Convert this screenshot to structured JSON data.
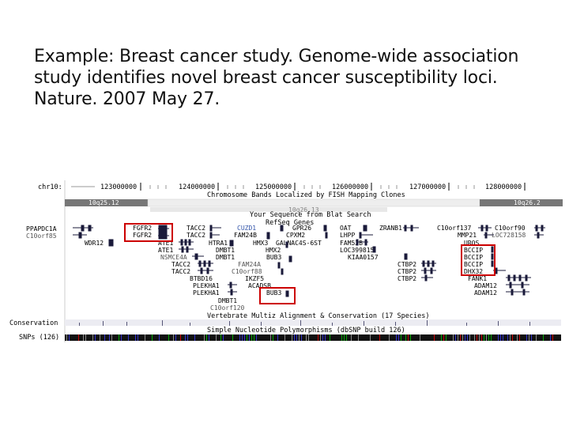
{
  "title_lines": [
    "Example: Breast cancer study. Genome-wide association",
    "study identifies novel breast cancer susceptibility loci.",
    "Nature. 2007 May 27."
  ],
  "browser": {
    "chrom_label": "chr10:",
    "positions": [
      "123000000",
      "124000000",
      "125000000",
      "126000000",
      "127000000",
      "128000000"
    ],
    "fish_track": "Chromosome Bands Localized by FISH Mapping Clones",
    "bands": [
      "10q25.12",
      "10q26.13",
      "10q26.2"
    ],
    "blat_track": "Your Sequence from Blat Search",
    "refseq_track": "RefSeq Genes",
    "left_labels": [
      "PPAPDC1A",
      "C10orf85"
    ],
    "genes": {
      "wdr": "WDR12",
      "fgfr2a": "FGFR2",
      "fgfr2b": "FGFR2",
      "ate1a": "ATE1",
      "ate1b": "ATE1",
      "nsmce4a": "NSMCE4A",
      "tacc2a": "TACC2",
      "tacc2b": "TACC2",
      "tacc2c": "TACC2",
      "tacc2d": "TACC2",
      "btbd16": "BTBD16",
      "plekha1a": "PLEKHA1",
      "plekha1b": "PLEKHA1",
      "htra1": "HTRA1",
      "dmbt1a": "DMBT1",
      "dmbt1b": "DMBT1",
      "dmbt1c": "DMBT1",
      "c10orf120": "C10orf120",
      "cuzd1": "CUZD1",
      "fam24b": "FAM24B",
      "fam24a": "FAM24A",
      "c10orf88": "C10orf88",
      "ikzf5": "IKZF5",
      "acadsb": "ACADSB",
      "hmx3": "HMX3",
      "hmx2": "HMX2",
      "bub3a": "BUB3",
      "bub3b": "BUB3",
      "gpr26": "GPR26",
      "cpxm2": "CPXM2",
      "galnac": "GALNAC4S-6ST",
      "oat": "OAT",
      "lhpp": "LHPP",
      "fam53b": "FAM53B",
      "loc": "LOC399815",
      "kiaa": "KIAA0157",
      "zranb1": "ZRANB1",
      "ctbp2a": "CTBP2",
      "ctbp2b": "CTBP2",
      "ctbp2c": "CTBP2",
      "c10orf137": "C10orf137",
      "mmp21": "MMP21",
      "uros": "UROS",
      "bccipa": "BCCIP",
      "bccipb": "BCCIP",
      "bccipc": "BCCIP",
      "dhx32": "DHX32",
      "fank1": "FANK1",
      "adam12a": "ADAM12",
      "adam12b": "ADAM12",
      "c10orf90": "C10orf90",
      "loc728158": "LOC728158"
    },
    "conservation_track": "Vertebrate Multiz Alignment & Conservation (17 Species)",
    "conservation_label": "Conservation",
    "snp_track": "Simple Nucleotide Polymorphisms (dbSNP build 126)",
    "snp_label": "SNPs (126)",
    "highlight_color": "#cc0000"
  }
}
